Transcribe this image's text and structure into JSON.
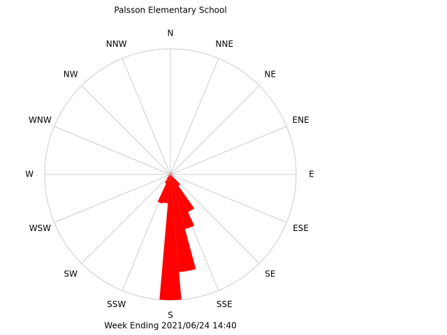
{
  "chart_data": {
    "type": "windrose",
    "title": "Palsson Elementary School",
    "footer": "Week Ending 2021/06/24 14:40",
    "compass": [
      "N",
      "NNE",
      "NE",
      "ENE",
      "E",
      "ESE",
      "SE",
      "SSE",
      "S",
      "SSW",
      "SW",
      "WSW",
      "W",
      "WNW",
      "NW",
      "NNW"
    ],
    "directions": [
      0,
      30,
      90,
      140,
      150,
      160,
      170,
      180,
      190,
      200,
      210,
      220,
      260
    ],
    "bin_width": 10,
    "values": [
      2,
      2,
      2,
      11,
      33,
      45,
      78,
      100,
      23,
      24,
      8,
      4,
      2
    ],
    "rlim": [
      0,
      100
    ],
    "color": "#ff0000"
  }
}
